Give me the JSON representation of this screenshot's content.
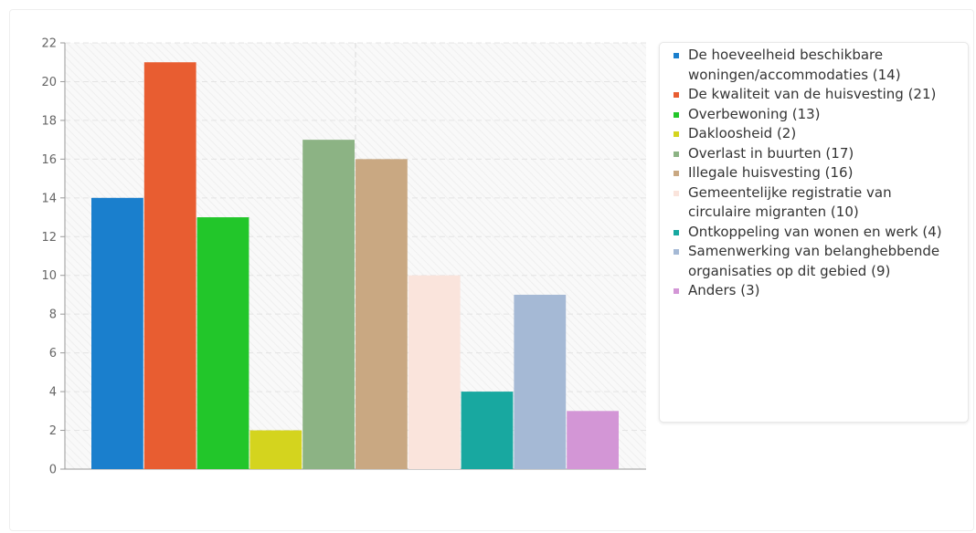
{
  "chart_data": {
    "type": "bar",
    "title": "",
    "xlabel": "",
    "ylabel": "",
    "ylim": [
      0,
      22
    ],
    "yticks": [
      0,
      2,
      4,
      6,
      8,
      10,
      12,
      14,
      16,
      18,
      20,
      22
    ],
    "grid": true,
    "legend_position": "right",
    "series": [
      {
        "name": "De hoeveelheid beschikbare woningen/accommodaties (14)",
        "value": 14,
        "color": "#1a7fcd"
      },
      {
        "name": "De kwaliteit van de huisvesting (21)",
        "value": 21,
        "color": "#e85d31"
      },
      {
        "name": "Overbewoning (13)",
        "value": 13,
        "color": "#22c62a"
      },
      {
        "name": "Dakloosheid (2)",
        "value": 2,
        "color": "#d4d41e"
      },
      {
        "name": "Overlast in buurten (17)",
        "value": 17,
        "color": "#8cb384"
      },
      {
        "name": "Illegale huisvesting (16)",
        "value": 16,
        "color": "#c9a882"
      },
      {
        "name": "Gemeentelijke registratie van circulaire migranten (10)",
        "value": 10,
        "color": "#fae4dc"
      },
      {
        "name": "Ontkoppeling van wonen en werk (4)",
        "value": 4,
        "color": "#18a8a0"
      },
      {
        "name": "Samenwerking van belanghebbende organisaties op dit gebied (9)",
        "value": 9,
        "color": "#a5b9d5"
      },
      {
        "name": "Anders (3)",
        "value": 3,
        "color": "#d396d6"
      }
    ]
  }
}
